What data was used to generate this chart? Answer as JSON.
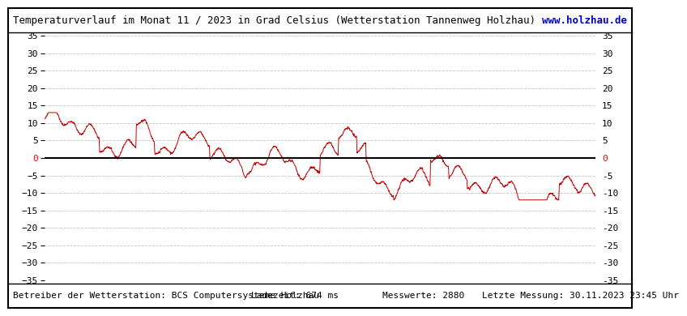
{
  "title": "Temperaturverlauf im Monat 11 / 2023 in Grad Celsius (Wetterstation Tannenweg Holzhau)",
  "url_text": "www.holzhau.de",
  "footer_left": "Betreiber der Wetterstation: BCS Computersysteme Holzhau",
  "footer_mid": "Ladezeit: 674 ms",
  "footer_messwerte": "Messwerte: 2880",
  "footer_letzte": "Letzte Messung: 30.11.2023 23:45 Uhr",
  "ylim": [
    -35,
    35
  ],
  "yticks": [
    -35,
    -30,
    -25,
    -20,
    -15,
    -10,
    -5,
    0,
    5,
    10,
    15,
    20,
    25,
    30,
    35
  ],
  "line_color": "#cc0000",
  "zero_line_color": "#000000",
  "background_color": "#ffffff",
  "grid_color": "#aaaaaa",
  "title_fontsize": 9,
  "footer_fontsize": 8,
  "tick_fontsize": 8,
  "url_fontsize": 9,
  "n_points": 2880
}
